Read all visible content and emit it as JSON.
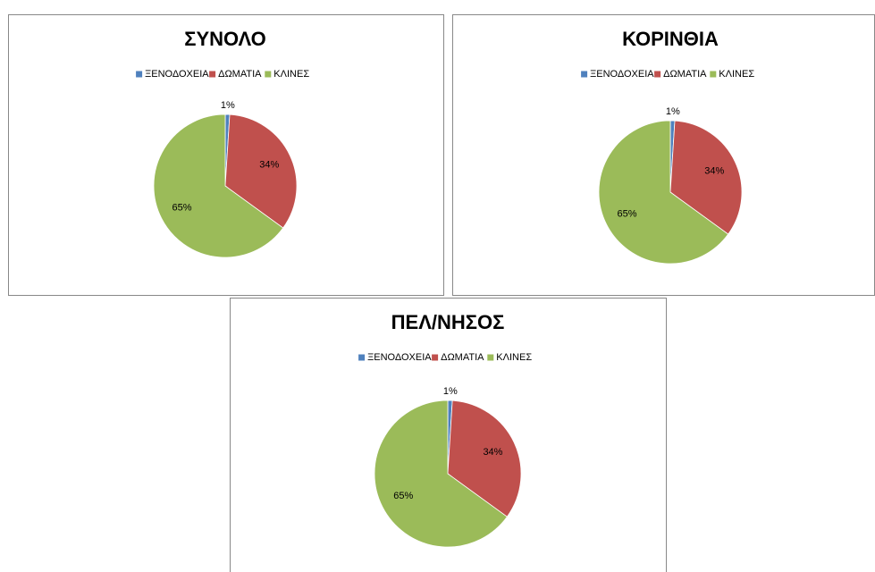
{
  "chart_data": [
    {
      "type": "pie",
      "title": "ΣΥΝΟΛΟ",
      "categories": [
        "ΞΕΝΟΔΟΧΕΙΑ",
        "ΔΩΜΑΤΙΑ",
        "ΚΛΙΝΕΣ"
      ],
      "values": [
        1,
        34,
        65
      ],
      "value_labels": [
        "1%",
        "34%",
        "65%"
      ],
      "colors": [
        "#4f81bd",
        "#c0504d",
        "#9bbb59"
      ],
      "legend": "top"
    },
    {
      "type": "pie",
      "title": "ΚΟΡΙΝΘΙΑ",
      "categories": [
        "ΞΕΝΟΔΟΧΕΙΑ",
        "ΔΩΜΑΤΙΑ",
        "ΚΛΙΝΕΣ"
      ],
      "values": [
        1,
        34,
        65
      ],
      "value_labels": [
        "1%",
        "34%",
        "65%"
      ],
      "colors": [
        "#4f81bd",
        "#c0504d",
        "#9bbb59"
      ],
      "legend": "top"
    },
    {
      "type": "pie",
      "title": "ΠΕΛ/ΝΗΣΟΣ",
      "categories": [
        "ΞΕΝΟΔΟΧΕΙΑ",
        "ΔΩΜΑΤΙΑ",
        "ΚΛΙΝΕΣ"
      ],
      "values": [
        1,
        34,
        65
      ],
      "value_labels": [
        "1%",
        "34%",
        "65%"
      ],
      "colors": [
        "#4f81bd",
        "#c0504d",
        "#9bbb59"
      ],
      "legend": "top"
    }
  ]
}
